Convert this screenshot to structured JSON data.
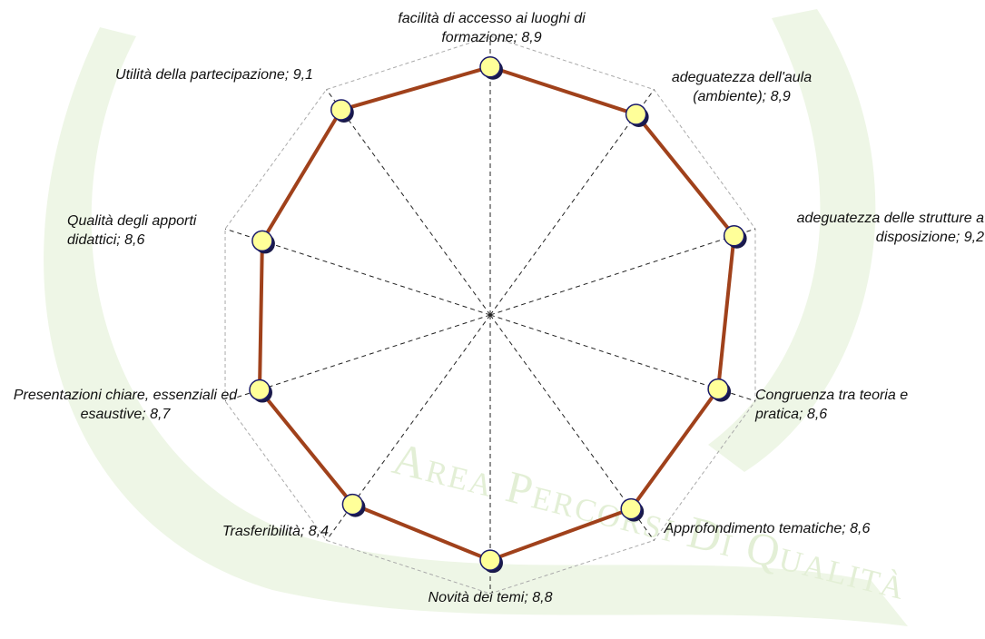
{
  "chart_data": {
    "type": "radar",
    "watermark": "Area Percorsi Di Qualità",
    "categories": [
      "facilità di accesso ai luoghi di formazione;",
      "adeguatezza dell'aula (ambiente);",
      "adeguatezza delle strutture a disposizione;",
      "Congruenza tra teoria e pratica;",
      "Approfondimento tematiche;",
      "Novità dei temi;",
      "Trasferibilità;",
      "Presentazioni chiare, essenziali ed esaustive;",
      "Qualità degli apporti didattici;",
      "Utilità della partecipazione;"
    ],
    "values": [
      8.9,
      8.9,
      9.2,
      8.6,
      8.6,
      8.8,
      8.4,
      8.7,
      8.6,
      9.1
    ],
    "value_labels": [
      "8,9",
      "8,9",
      "9,2",
      "8,6",
      "8,6",
      "8,8",
      "8,4",
      "8,7",
      "8,6",
      "9,1"
    ],
    "color": "#a0411b",
    "marker_color": "#ffff99",
    "rlim": [
      0,
      10
    ],
    "grid": true
  }
}
